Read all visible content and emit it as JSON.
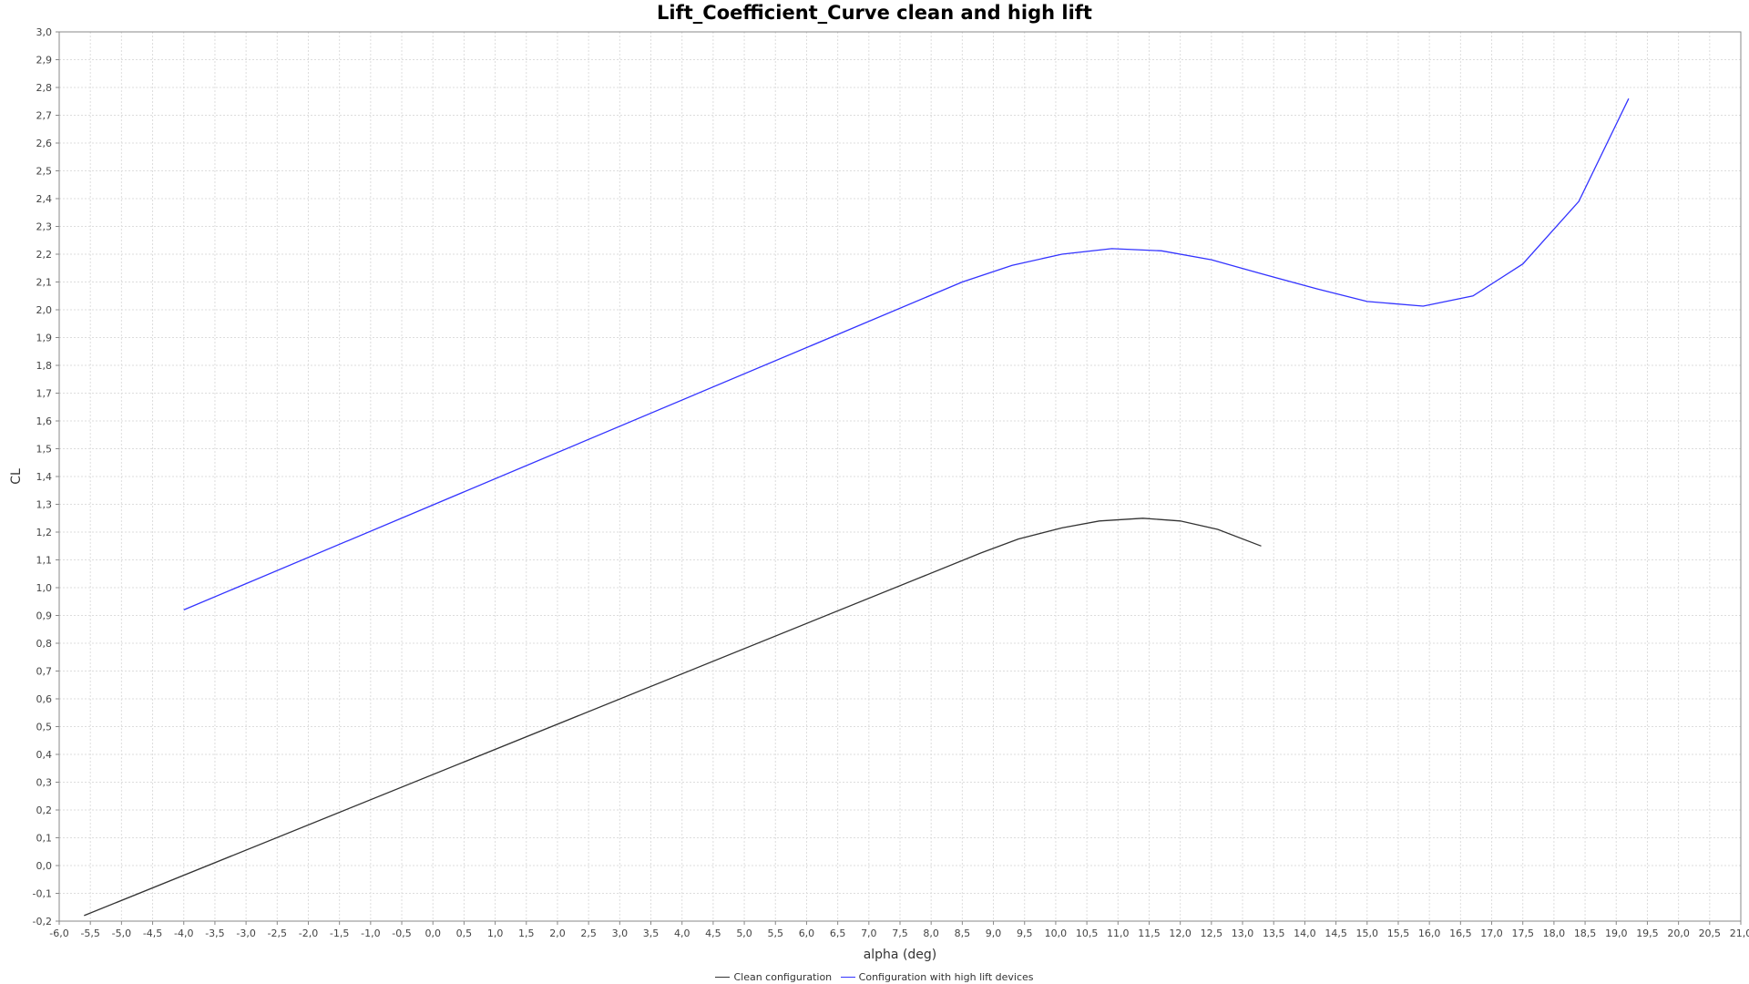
{
  "colors": {
    "clean": "#333333",
    "high_lift": "#3333ff",
    "grid": "#dddddd",
    "background": "#ffffff"
  },
  "chart_data": {
    "type": "line",
    "title": "Lift_Coefficient_Curve clean and high lift",
    "xlabel": "alpha (deg)",
    "ylabel": "CL",
    "xlim": [
      -6.0,
      21.0
    ],
    "ylim": [
      -0.2,
      3.0
    ],
    "x_ticks": [
      "-6,0",
      "-5,5",
      "-5,0",
      "-4,5",
      "-4,0",
      "-3,5",
      "-3,0",
      "-2,5",
      "-2,0",
      "-1,5",
      "-1,0",
      "-0,5",
      "0,0",
      "0,5",
      "1,0",
      "1,5",
      "2,0",
      "2,5",
      "3,0",
      "3,5",
      "4,0",
      "4,5",
      "5,0",
      "5,5",
      "6,0",
      "6,5",
      "7,0",
      "7,5",
      "8,0",
      "8,5",
      "9,0",
      "9,5",
      "10,0",
      "10,5",
      "11,0",
      "11,5",
      "12,0",
      "12,5",
      "13,0",
      "13,5",
      "14,0",
      "14,5",
      "15,0",
      "15,5",
      "16,0",
      "16,5",
      "17,0",
      "17,5",
      "18,0",
      "18,5",
      "19,0",
      "19,5",
      "20,0",
      "20,5",
      "21,0"
    ],
    "y_ticks": [
      "-0,2",
      "-0,1",
      "0,0",
      "0,1",
      "0,2",
      "0,3",
      "0,4",
      "0,5",
      "0,6",
      "0,7",
      "0,8",
      "0,9",
      "1,0",
      "1,1",
      "1,2",
      "1,3",
      "1,4",
      "1,5",
      "1,6",
      "1,7",
      "1,8",
      "1,9",
      "2,0",
      "2,1",
      "2,2",
      "2,3",
      "2,4",
      "2,5",
      "2,6",
      "2,7",
      "2,8",
      "2,9",
      "3,0"
    ],
    "grid": true,
    "legend_position": "bottom-center",
    "series": [
      {
        "name": "Clean configuration",
        "color": "#333333",
        "points": [
          [
            -5.6,
            -0.18
          ],
          [
            8.8,
            1.125
          ],
          [
            9.4,
            1.175
          ],
          [
            10.1,
            1.215
          ],
          [
            10.7,
            1.24
          ],
          [
            11.4,
            1.25
          ],
          [
            12.0,
            1.24
          ],
          [
            12.6,
            1.21
          ],
          [
            13.3,
            1.15
          ]
        ]
      },
      {
        "name": "Configuration with high lift devices",
        "color": "#3333ff",
        "points": [
          [
            -4.0,
            0.92
          ],
          [
            8.5,
            2.1
          ],
          [
            9.3,
            2.16
          ],
          [
            10.1,
            2.2
          ],
          [
            10.9,
            2.22
          ],
          [
            11.7,
            2.212
          ],
          [
            12.5,
            2.18
          ],
          [
            13.3,
            2.13
          ],
          [
            14.2,
            2.075
          ],
          [
            15.0,
            2.03
          ],
          [
            15.9,
            2.013
          ],
          [
            16.7,
            2.05
          ],
          [
            17.5,
            2.165
          ],
          [
            18.4,
            2.39
          ],
          [
            19.2,
            2.76
          ]
        ]
      }
    ]
  }
}
